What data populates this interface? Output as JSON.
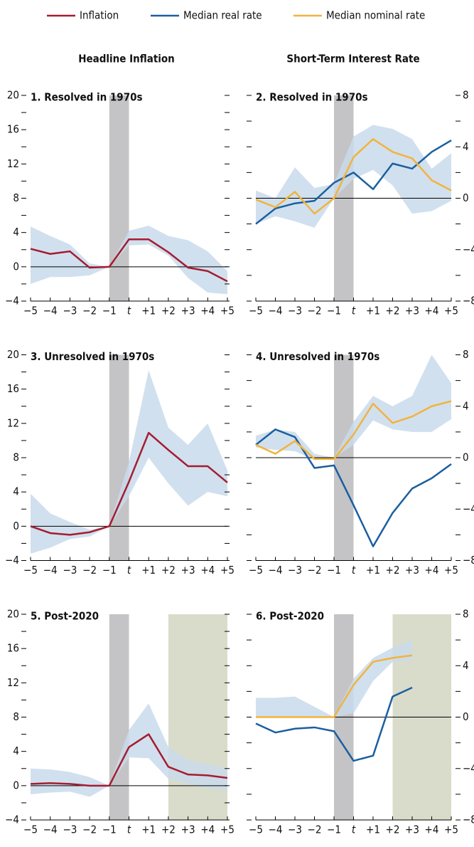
{
  "legend_panels_note_free": null,
  "column_titles": [
    "Headline Inflation",
    "Short-Term Interest Rate"
  ],
  "chart_data": [
    {
      "type": "line",
      "title": "1. Resolved in 1970s",
      "axis_side": "left",
      "categories": [
        "−5",
        "−4",
        "−3",
        "−2",
        "−1",
        "t",
        "+1",
        "+2",
        "+3",
        "+4",
        "+5"
      ],
      "ylim": [
        -4,
        20
      ],
      "yticks": [
        {
          "value": -4,
          "label": "−4"
        },
        0,
        4,
        8,
        12,
        16,
        20
      ],
      "yminorticks": [
        -2,
        2,
        6,
        10,
        14,
        18
      ],
      "series": [
        {
          "name": "Inflation",
          "color": "#a51c30",
          "values": [
            2.1,
            1.5,
            1.8,
            -0.1,
            0,
            3.2,
            3.2,
            1.7,
            -0.1,
            -0.5,
            -1.7
          ]
        }
      ],
      "band": {
        "color": "#c9dbeb",
        "upper": [
          4.7,
          3.6,
          2.6,
          0.4,
          0,
          4.2,
          4.8,
          3.6,
          3.1,
          1.8,
          -0.5
        ],
        "lower": [
          -2.0,
          -1.2,
          -1.2,
          -1.0,
          0,
          2.5,
          2.6,
          1.3,
          -1.3,
          -3.0,
          -3.2
        ]
      },
      "shade": [
        {
          "from": 4,
          "to": 5,
          "color": "#c4c4c6"
        }
      ]
    },
    {
      "type": "line",
      "title": "2. Resolved in 1970s",
      "axis_side": "right",
      "categories": [
        "−5",
        "−4",
        "−3",
        "−2",
        "−1",
        "t",
        "+1",
        "+2",
        "+3",
        "+4",
        "+5"
      ],
      "ylim": [
        -8,
        8
      ],
      "yticks": [
        {
          "value": -8,
          "label": "−8"
        },
        {
          "value": -4,
          "label": "−4"
        },
        0,
        4,
        8
      ],
      "yminorticks": [
        -6,
        -2,
        2,
        6
      ],
      "series": [
        {
          "name": "Median real rate",
          "color": "#1a5fa0",
          "values": [
            -2.0,
            -0.8,
            -0.4,
            -0.2,
            1.2,
            2.0,
            0.7,
            2.7,
            2.3,
            3.6,
            4.5
          ]
        },
        {
          "name": "Median nominal rate",
          "color": "#f2b33d",
          "values": [
            -0.1,
            -0.7,
            0.5,
            -1.2,
            0,
            3.2,
            4.6,
            3.6,
            3.1,
            1.4,
            0.6
          ]
        }
      ],
      "band": {
        "color": "#c9dbeb",
        "upper": [
          0.6,
          0,
          2.4,
          0.8,
          1.1,
          4.8,
          5.7,
          5.4,
          4.6,
          2.3,
          3.5
        ],
        "lower": [
          -2.0,
          -1.4,
          -1.8,
          -2.3,
          0,
          1.5,
          2.2,
          1.0,
          -1.2,
          -1.0,
          -0.2
        ]
      },
      "shade": [
        {
          "from": 4,
          "to": 5,
          "color": "#c4c4c6"
        }
      ]
    },
    {
      "type": "line",
      "title": "3. Unresolved in 1970s",
      "axis_side": "left",
      "categories": [
        "−5",
        "−4",
        "−3",
        "−2",
        "−1",
        "t",
        "+1",
        "+2",
        "+3",
        "+4",
        "+5"
      ],
      "ylim": [
        -4,
        20
      ],
      "yticks": [
        {
          "value": -4,
          "label": "−4"
        },
        0,
        4,
        8,
        12,
        16,
        20
      ],
      "yminorticks": [
        -2,
        2,
        6,
        10,
        14,
        18
      ],
      "series": [
        {
          "color": "#a51c30",
          "values": [
            0,
            -0.8,
            -1.0,
            -0.7,
            0,
            5.2,
            10.9,
            8.9,
            7.0,
            7.0,
            5.1
          ]
        }
      ],
      "band": {
        "color": "#c9dbeb",
        "upper": [
          3.8,
          1.5,
          0.5,
          -0.4,
          0,
          7.5,
          18.2,
          11.5,
          9.5,
          12,
          6.5
        ],
        "lower": [
          -3.2,
          -2.5,
          -1.5,
          -1.2,
          0,
          3.5,
          8.0,
          5.0,
          2.4,
          4.0,
          3.5
        ]
      },
      "shade": [
        {
          "from": 4,
          "to": 5,
          "color": "#c4c4c6"
        }
      ]
    },
    {
      "type": "line",
      "title": "4. Unresolved in 1970s",
      "axis_side": "right",
      "categories": [
        "−5",
        "−4",
        "−3",
        "−2",
        "−1",
        "t",
        "+1",
        "+2",
        "+3",
        "+4",
        "+5"
      ],
      "ylim": [
        -8,
        8
      ],
      "yticks": [
        {
          "value": -8,
          "label": "−8"
        },
        {
          "value": -4,
          "label": "−4"
        },
        0,
        4,
        8
      ],
      "yminorticks": [
        -6,
        -2,
        2,
        6
      ],
      "series": [
        {
          "color": "#1a5fa0",
          "values": [
            1.0,
            2.2,
            1.6,
            -0.8,
            -0.6,
            -3.7,
            -6.9,
            -4.3,
            -2.4,
            -1.6,
            -0.5
          ]
        },
        {
          "color": "#f2b33d",
          "values": [
            1.0,
            0.3,
            1.3,
            -0.1,
            -0.1,
            1.8,
            4.2,
            2.7,
            3.2,
            4.0,
            4.4
          ]
        }
      ],
      "band": {
        "color": "#c9dbeb",
        "upper": [
          1.7,
          2.2,
          2.0,
          0.3,
          0,
          2.8,
          4.8,
          4.0,
          4.8,
          8.0,
          5.8
        ],
        "lower": [
          0.8,
          0.6,
          0.5,
          -0.2,
          0,
          1.0,
          2.9,
          2.2,
          2.0,
          2.0,
          3.0
        ]
      },
      "shade": [
        {
          "from": 4,
          "to": 5,
          "color": "#c4c4c6"
        }
      ]
    },
    {
      "type": "line",
      "title": "5. Post-2020",
      "axis_side": "left",
      "categories": [
        "−5",
        "−4",
        "−3",
        "−2",
        "−1",
        "t",
        "+1",
        "+2",
        "+3",
        "+4",
        "+5"
      ],
      "ylim": [
        -4,
        20
      ],
      "yticks": [
        {
          "value": -4,
          "label": "−4"
        },
        0,
        4,
        8,
        12,
        16,
        20
      ],
      "yminorticks": [
        -2,
        2,
        6,
        10,
        14,
        18
      ],
      "series": [
        {
          "color": "#a51c30",
          "values": [
            0.2,
            0.3,
            0.2,
            0,
            0,
            4.5,
            6.0,
            2.2,
            1.3,
            1.2,
            0.9
          ]
        }
      ],
      "band": {
        "color": "#c9dbeb",
        "upper": [
          2.0,
          1.9,
          1.6,
          1.0,
          0,
          6.5,
          9.6,
          4.5,
          3.0,
          2.5,
          2.0
        ],
        "lower": [
          -1.0,
          -0.8,
          -0.7,
          -1.3,
          0,
          3.3,
          3.2,
          0.8,
          0.2,
          -0.3,
          -0.5
        ]
      },
      "shade": [
        {
          "from": 4,
          "to": 5,
          "color": "#c4c4c6"
        },
        {
          "from": 7,
          "to": 10,
          "color": "#d9dccb"
        }
      ]
    },
    {
      "type": "line",
      "title": "6. Post-2020",
      "axis_side": "right",
      "categories": [
        "−5",
        "−4",
        "−3",
        "−2",
        "−1",
        "t",
        "+1",
        "+2",
        "+3",
        "+4",
        "+5"
      ],
      "ylim": [
        -8,
        8
      ],
      "yticks": [
        {
          "value": -8,
          "label": "−8"
        },
        {
          "value": -4,
          "label": "−4"
        },
        0,
        4,
        8
      ],
      "yminorticks": [
        -6,
        -2,
        2,
        6
      ],
      "series": [
        {
          "color": "#1a5fa0",
          "values": [
            -0.5,
            -1.2,
            -0.9,
            -0.8,
            -1.1,
            -3.4,
            -3.0,
            1.6,
            2.3,
            null,
            null
          ]
        },
        {
          "color": "#f2b33d",
          "values": [
            0,
            0,
            0,
            0,
            0,
            2.5,
            4.3,
            4.6,
            4.8,
            null,
            null
          ]
        }
      ],
      "band": {
        "color": "#c9dbeb",
        "upper": [
          1.5,
          1.5,
          1.6,
          0.8,
          0,
          3.0,
          4.6,
          5.4,
          6.0,
          null,
          null
        ],
        "lower": [
          0,
          0,
          0,
          0,
          0,
          0.3,
          2.8,
          4.3,
          4.4,
          null,
          null
        ]
      },
      "shade": [
        {
          "from": 4,
          "to": 5,
          "color": "#c4c4c6"
        },
        {
          "from": 7,
          "to": 10,
          "color": "#d9dccb"
        }
      ]
    }
  ]
}
